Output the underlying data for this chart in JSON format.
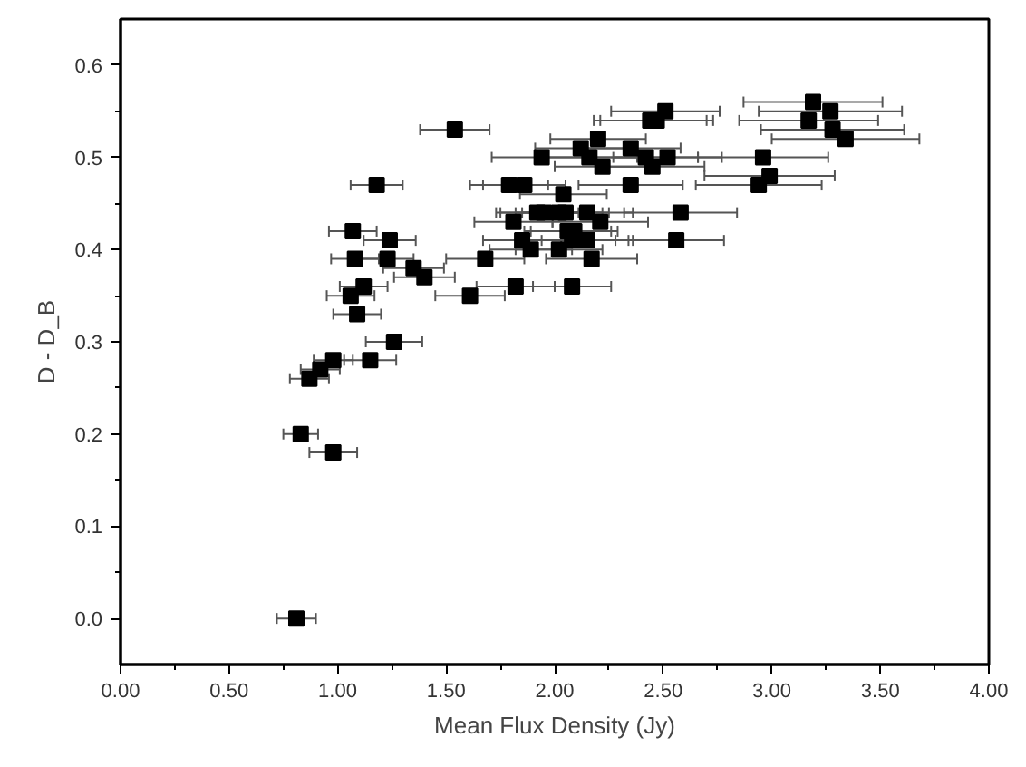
{
  "chart_data": {
    "type": "scatter",
    "xlabel": "Mean Flux Density (Jy)",
    "ylabel": "D - D_B",
    "xlim": [
      0,
      4
    ],
    "ylim": [
      -0.05,
      0.65
    ],
    "xticks": [
      {
        "value": 0,
        "label": "0.00"
      },
      {
        "value": 0.5,
        "label": "0.50"
      },
      {
        "value": 1,
        "label": "1.00"
      },
      {
        "value": 1.5,
        "label": "1.50"
      },
      {
        "value": 2,
        "label": "2.00"
      },
      {
        "value": 2.5,
        "label": "2.50"
      },
      {
        "value": 3,
        "label": "3.00"
      },
      {
        "value": 3.5,
        "label": "3.50"
      },
      {
        "value": 4,
        "label": "4.00"
      }
    ],
    "yticks": [
      {
        "value": 0,
        "label": "0.0"
      },
      {
        "value": 0.1,
        "label": "0.1"
      },
      {
        "value": 0.2,
        "label": "0.2"
      },
      {
        "value": 0.3,
        "label": "0.3"
      },
      {
        "value": 0.4,
        "label": "0.4"
      },
      {
        "value": 0.5,
        "label": "0.5"
      },
      {
        "value": 0.6,
        "label": "0.6"
      }
    ],
    "marker": "square",
    "grid": false,
    "series": [
      {
        "color": "#000000",
        "x": [
          1.54,
          1.18,
          1.07,
          1.24,
          1.08,
          1.23,
          1.35,
          1.4,
          1.12,
          1.06,
          1.09,
          1.26,
          1.15,
          0.98,
          0.92,
          0.87,
          0.83,
          0.98,
          0.81,
          1.61,
          1.68,
          1.82,
          3.19,
          3.27,
          3.17,
          3.28,
          3.34,
          2.51,
          2.47,
          2.44,
          2.2,
          2.12,
          2.35,
          1.94,
          2.16,
          2.42,
          2.52,
          2.96,
          2.22,
          2.45,
          2.99,
          2.94,
          1.79,
          1.86,
          2.35,
          2.04,
          1.92,
          1.95,
          2.02,
          2.05,
          2.15,
          2.58,
          1.81,
          2.21,
          2.06,
          2.09,
          1.85,
          2.08,
          2.15,
          2.56,
          1.89,
          2.02,
          2.17,
          2.08
        ],
        "values": [
          0.53,
          0.47,
          0.42,
          0.41,
          0.39,
          0.39,
          0.38,
          0.37,
          0.36,
          0.35,
          0.33,
          0.3,
          0.28,
          0.28,
          0.27,
          0.26,
          0.2,
          0.18,
          0.0,
          0.35,
          0.39,
          0.36,
          0.56,
          0.55,
          0.54,
          0.53,
          0.52,
          0.55,
          0.54,
          0.54,
          0.52,
          0.51,
          0.51,
          0.5,
          0.5,
          0.5,
          0.5,
          0.5,
          0.49,
          0.49,
          0.48,
          0.47,
          0.47,
          0.47,
          0.47,
          0.46,
          0.44,
          0.44,
          0.44,
          0.44,
          0.44,
          0.44,
          0.43,
          0.43,
          0.42,
          0.42,
          0.41,
          0.41,
          0.41,
          0.41,
          0.4,
          0.4,
          0.39,
          0.36
        ],
        "xerrors": [
          0.16,
          0.12,
          0.11,
          0.12,
          0.11,
          0.12,
          0.14,
          0.14,
          0.11,
          0.11,
          0.11,
          0.13,
          0.12,
          0.09,
          0.09,
          0.09,
          0.08,
          0.11,
          0.09,
          0.16,
          0.18,
          0.18,
          0.32,
          0.33,
          0.32,
          0.33,
          0.34,
          0.25,
          0.26,
          0.26,
          0.22,
          0.21,
          0.23,
          0.23,
          0.22,
          0.24,
          0.25,
          0.3,
          0.22,
          0.24,
          0.3,
          0.29,
          0.18,
          0.19,
          0.24,
          0.2,
          0.19,
          0.2,
          0.2,
          0.2,
          0.21,
          0.26,
          0.18,
          0.22,
          0.2,
          0.2,
          0.18,
          0.2,
          0.21,
          0.22,
          0.19,
          0.2,
          0.21,
          0.18
        ]
      }
    ]
  }
}
